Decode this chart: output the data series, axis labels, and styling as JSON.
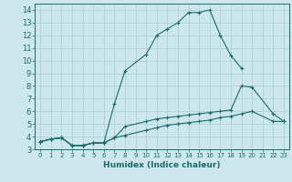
{
  "xlabel": "Humidex (Indice chaleur)",
  "ylabel": "",
  "xlim": [
    -0.5,
    23.5
  ],
  "ylim": [
    3,
    14.5
  ],
  "xticks": [
    0,
    1,
    2,
    3,
    4,
    5,
    6,
    7,
    8,
    9,
    10,
    11,
    12,
    13,
    14,
    15,
    16,
    17,
    18,
    19,
    20,
    21,
    22,
    23
  ],
  "yticks": [
    3,
    4,
    5,
    6,
    7,
    8,
    9,
    10,
    11,
    12,
    13,
    14
  ],
  "bg_color": "#cce8ec",
  "line_color": "#1a6b6b",
  "grid_color": "#b0d0d8",
  "lines": [
    {
      "x": [
        0,
        1,
        2,
        3,
        4,
        5,
        6,
        7,
        8,
        10,
        11,
        12,
        13,
        14,
        15,
        16,
        17,
        18,
        19
      ],
      "y": [
        3.6,
        3.8,
        3.9,
        3.3,
        3.3,
        3.5,
        3.5,
        6.6,
        9.2,
        10.5,
        12.0,
        12.5,
        13.0,
        13.8,
        13.8,
        14.0,
        12.0,
        10.4,
        9.4
      ]
    },
    {
      "x": [
        0,
        1,
        2,
        3,
        4,
        5,
        6,
        7,
        8,
        10,
        11,
        12,
        13,
        14,
        15,
        16,
        17,
        18,
        19,
        20,
        22,
        23
      ],
      "y": [
        3.6,
        3.8,
        3.9,
        3.3,
        3.3,
        3.5,
        3.5,
        3.9,
        4.8,
        5.2,
        5.4,
        5.5,
        5.6,
        5.7,
        5.8,
        5.9,
        6.0,
        6.1,
        8.0,
        7.9,
        5.8,
        5.2
      ]
    },
    {
      "x": [
        0,
        1,
        2,
        3,
        4,
        5,
        6,
        7,
        8,
        10,
        11,
        12,
        13,
        14,
        15,
        16,
        17,
        18,
        19,
        20,
        22,
        23
      ],
      "y": [
        3.6,
        3.8,
        3.9,
        3.3,
        3.3,
        3.5,
        3.5,
        3.9,
        4.1,
        4.5,
        4.7,
        4.9,
        5.0,
        5.1,
        5.2,
        5.3,
        5.5,
        5.6,
        5.8,
        6.0,
        5.2,
        5.2
      ]
    }
  ]
}
